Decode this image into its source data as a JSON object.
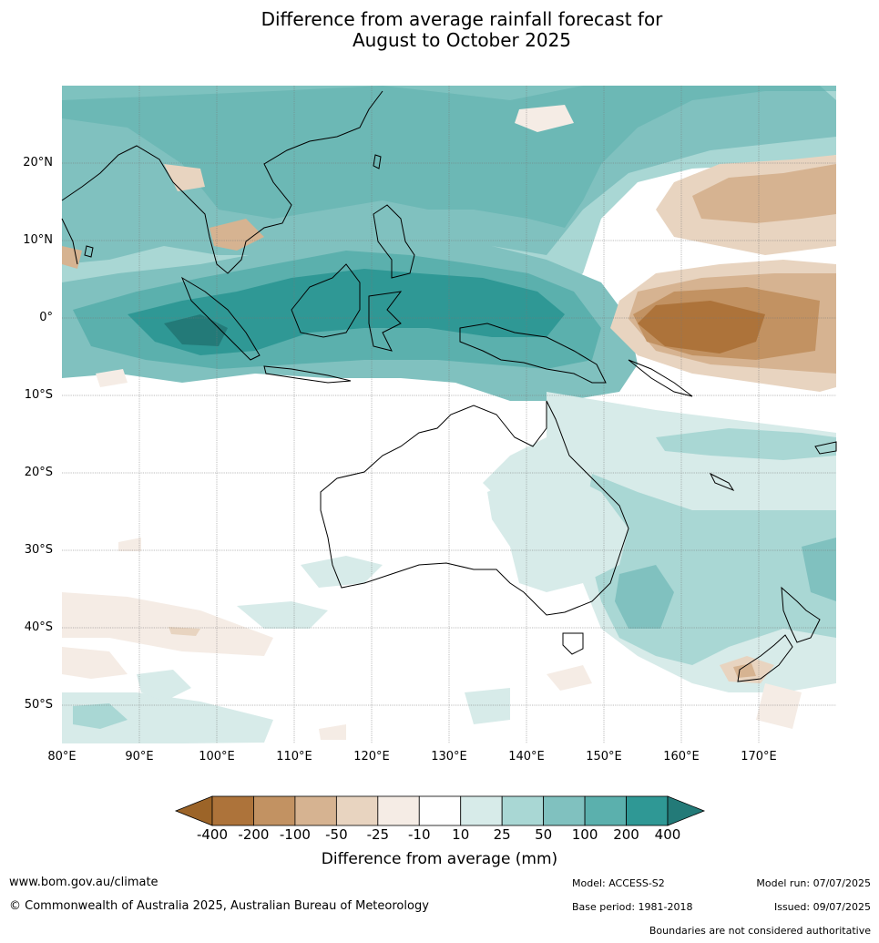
{
  "title_line1": "Difference from average rainfall forecast for",
  "title_line2": "August to October 2025",
  "lat_labels": [
    "20°N",
    "10°N",
    "0°",
    "10°S",
    "20°S",
    "30°S",
    "40°S",
    "50°S"
  ],
  "lon_labels": [
    "80°E",
    "90°E",
    "100°E",
    "110°E",
    "120°E",
    "130°E",
    "140°E",
    "150°E",
    "160°E",
    "170°E"
  ],
  "legend": {
    "title": "Difference from average (mm)",
    "tick_labels": [
      "-400",
      "-200",
      "-100",
      "-50",
      "-25",
      "-10",
      "10",
      "25",
      "50",
      "100",
      "200",
      "400"
    ],
    "colors": [
      "#9c6428",
      "#ad733a",
      "#c29262",
      "#d6b391",
      "#e8d4c0",
      "#f5ece5",
      "#ffffff",
      "#d7ebe9",
      "#a9d7d4",
      "#80c1bf",
      "#5bb0ad",
      "#2f9895",
      "#237a78"
    ]
  },
  "footer": {
    "website": "www.bom.gov.au/climate",
    "copyright": "© Commonwealth of Australia 2025, Australian Bureau of Meteorology",
    "model": "Model: ACCESS-S2",
    "base_period": "Base period: 1981-2018",
    "model_run": "Model run: 07/07/2025",
    "issued": "Issued: 09/07/2025",
    "boundaries_note": "Boundaries are not considered authoritative"
  }
}
